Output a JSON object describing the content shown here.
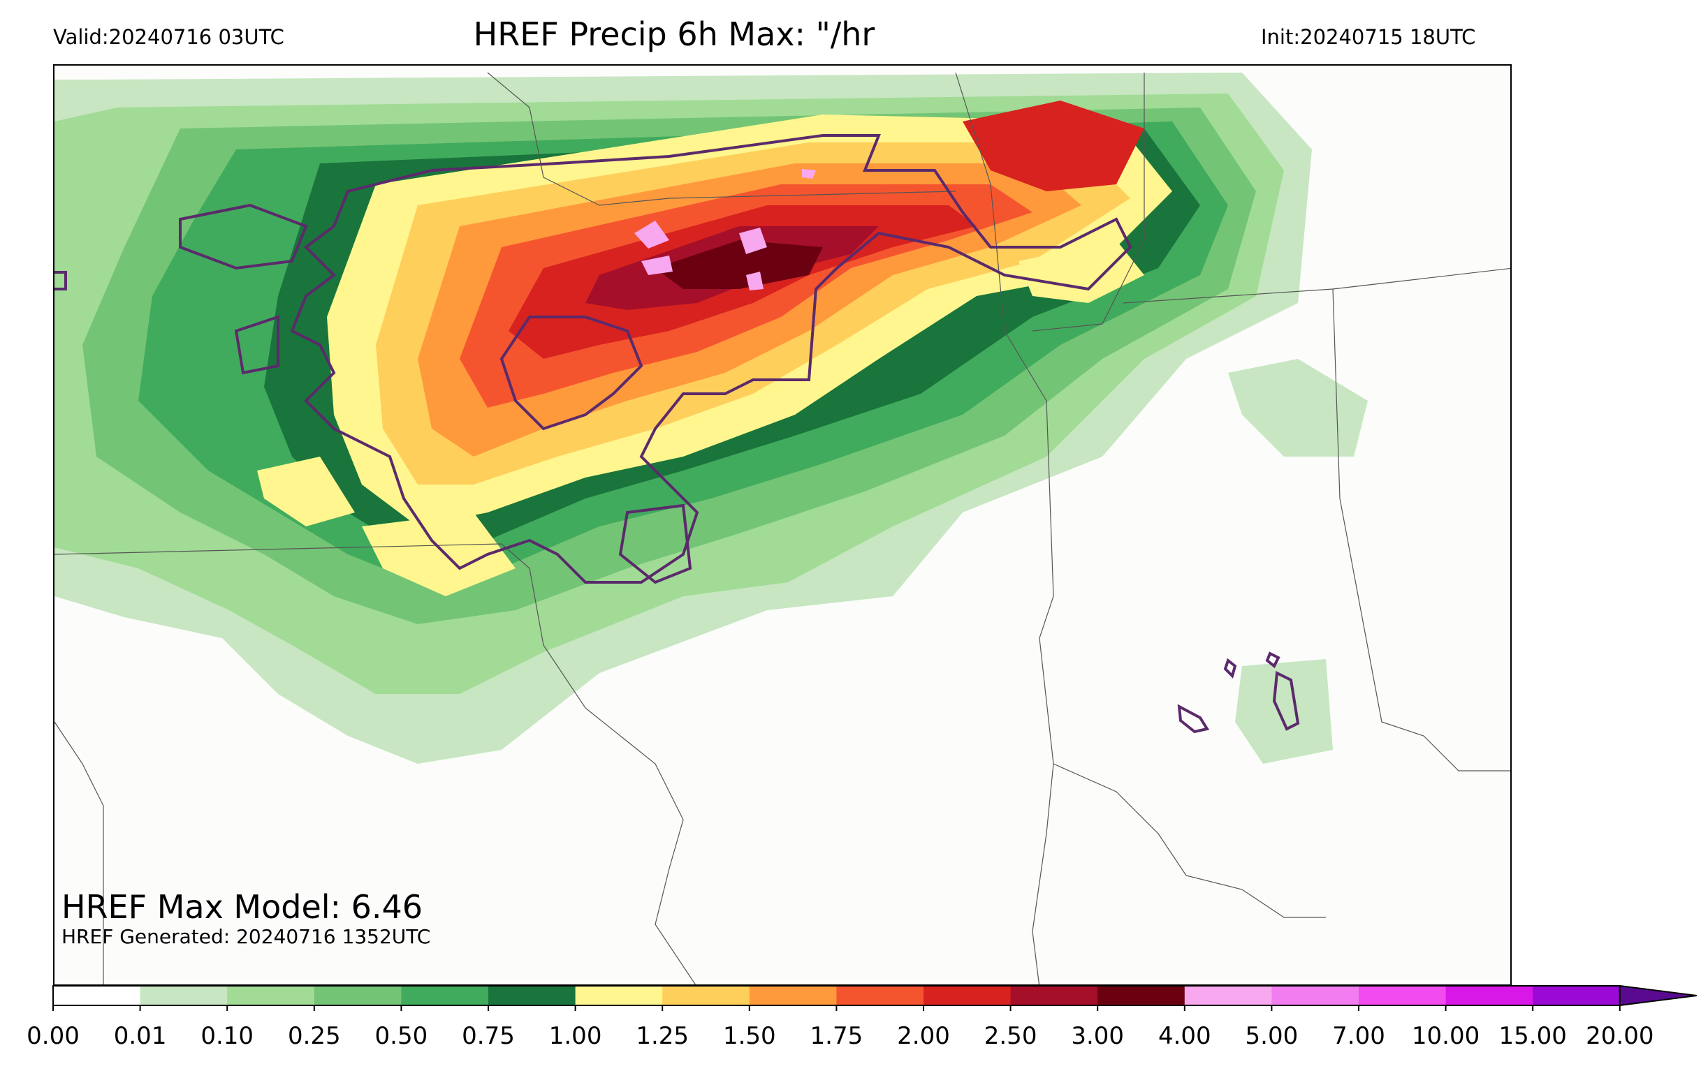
{
  "header": {
    "title": "HREF Precip 6h Max: \"/hr",
    "valid": "Valid:20240716 03UTC",
    "init": "Init:20240715 18UTC"
  },
  "annotations": {
    "max_model": "HREF Max Model: 6.46",
    "generated": "HREF Generated: 20240716 1352UTC"
  },
  "colorbar": {
    "ticks": [
      "0.00",
      "0.01",
      "0.10",
      "0.25",
      "0.50",
      "0.75",
      "1.00",
      "1.25",
      "1.50",
      "1.75",
      "2.00",
      "2.50",
      "3.00",
      "4.00",
      "5.00",
      "7.00",
      "10.00",
      "15.00",
      "20.00"
    ],
    "colors": [
      "#ffffff",
      "#c7e6c1",
      "#a1db96",
      "#74c476",
      "#41ab5d",
      "#19753b",
      "#fff68f",
      "#ffcf5c",
      "#ff9a3c",
      "#f5552e",
      "#d7221f",
      "#a50f2a",
      "#6b0010",
      "#f8a8ef",
      "#f27df0",
      "#f24cf0",
      "#d818e6",
      "#9a0ad4"
    ],
    "extend_color": "#5a0a90"
  },
  "map": {
    "background": "#fcfcfb",
    "contour_color": "#5b2a6b",
    "border_color": "#555555"
  }
}
